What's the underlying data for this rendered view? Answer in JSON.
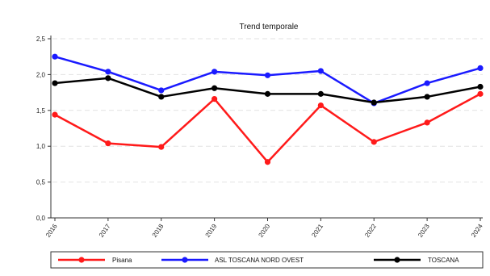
{
  "chart_data": {
    "type": "line",
    "title": "Trend temporale",
    "xlabel": "",
    "ylabel": "",
    "categories": [
      "2016",
      "2017",
      "2018",
      "2019",
      "2020",
      "2021",
      "2022",
      "2023",
      "2024"
    ],
    "y_ticks": [
      "0,0",
      "0,5",
      "1,0",
      "1,5",
      "2,0",
      "2,5"
    ],
    "ylim": [
      0,
      2.5
    ],
    "grid": true,
    "legend_position": "bottom",
    "series": [
      {
        "name": "Pisana",
        "color": "#ff1a1a",
        "values": [
          1.44,
          1.04,
          0.99,
          1.66,
          0.78,
          1.57,
          1.06,
          1.33,
          1.73
        ]
      },
      {
        "name": "ASL TOSCANA NORD OVEST",
        "color": "#1a1aff",
        "values": [
          2.25,
          2.04,
          1.78,
          2.04,
          1.99,
          2.05,
          1.6,
          1.88,
          2.09
        ]
      },
      {
        "name": "TOSCANA",
        "color": "#000000",
        "values": [
          1.88,
          1.95,
          1.69,
          1.81,
          1.73,
          1.73,
          1.61,
          1.69,
          1.83
        ]
      }
    ]
  }
}
